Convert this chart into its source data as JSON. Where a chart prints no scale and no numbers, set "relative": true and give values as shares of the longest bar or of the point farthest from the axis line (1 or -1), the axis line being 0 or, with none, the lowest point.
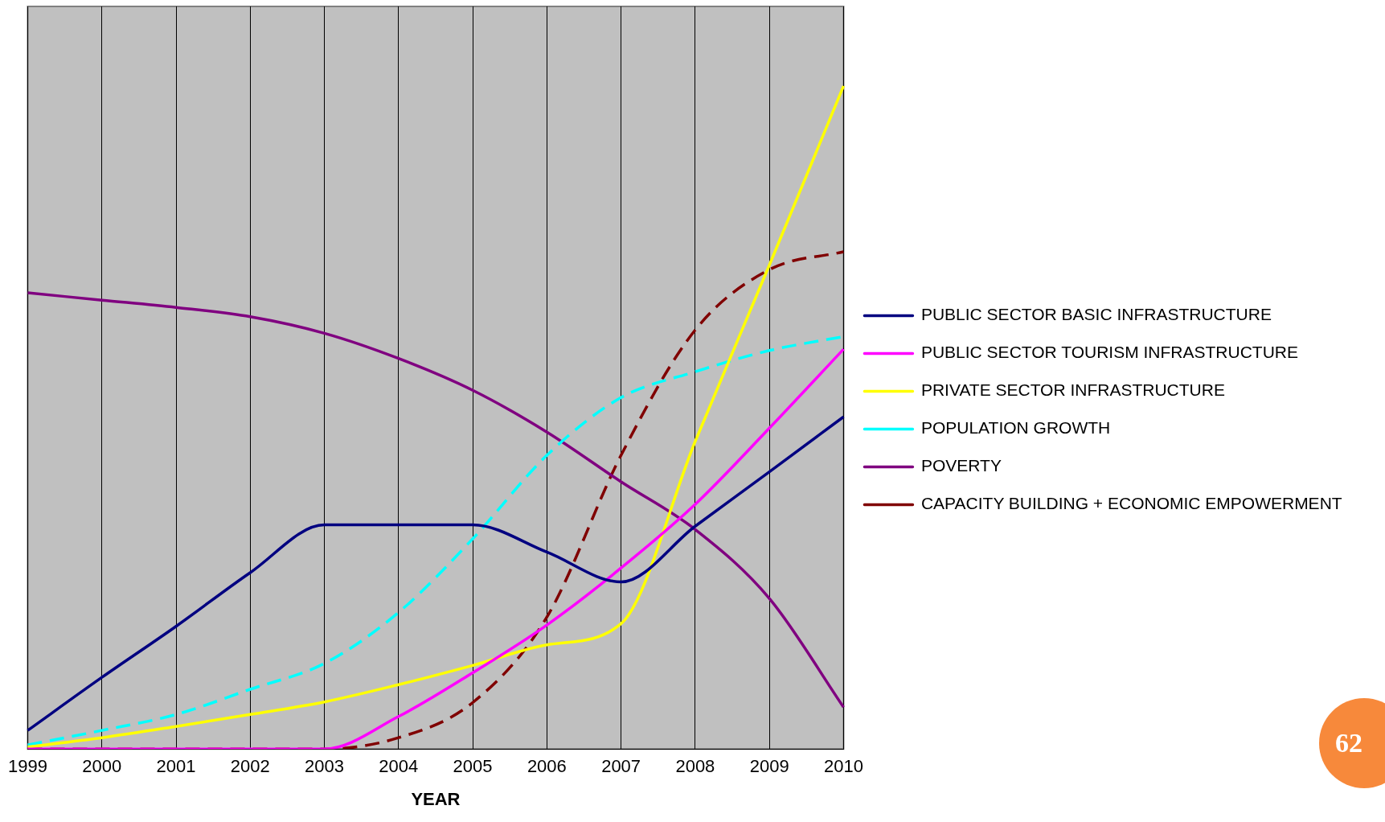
{
  "chart_data": {
    "type": "line",
    "relative": true,
    "xlabel": "YEAR",
    "categories": [
      "1999",
      "2000",
      "2001",
      "2002",
      "2003",
      "2004",
      "2005",
      "2006",
      "2007",
      "2008",
      "2009",
      "2010"
    ],
    "series": [
      {
        "name": "PUBLIC SECTOR BASIC INFRASTRUCTURE",
        "color": "#000080",
        "line_style": "solid",
        "values": [
          0.028,
          0.108,
          0.185,
          0.266,
          0.338,
          0.338,
          0.338,
          0.297,
          0.252,
          0.336,
          0.418,
          0.501
        ]
      },
      {
        "name": "PUBLIC SECTOR TOURISM INFRASTRUCTURE",
        "color": "#ff00ff",
        "line_style": "solid",
        "values": [
          0,
          0,
          0,
          0,
          0,
          0.049,
          0.115,
          0.187,
          0.273,
          0.369,
          0.484,
          0.603
        ]
      },
      {
        "name": "PRIVATE SECTOR INFRASTRUCTURE",
        "color": "#ffff00",
        "line_style": "solid",
        "values": [
          0.003,
          0.017,
          0.034,
          0.052,
          0.071,
          0.097,
          0.126,
          0.157,
          0.189,
          0.464,
          0.73,
          1
        ]
      },
      {
        "name": "POPULATION GROWTH",
        "color": "#00ffff",
        "line_style": "dashed",
        "values": [
          0.006,
          0.028,
          0.052,
          0.09,
          0.129,
          0.206,
          0.317,
          0.443,
          0.53,
          0.569,
          0.601,
          0.622
        ]
      },
      {
        "name": "POVERTY",
        "color": "#800080",
        "line_style": "solid",
        "values": [
          0.688,
          0.677,
          0.666,
          0.652,
          0.627,
          0.589,
          0.541,
          0.478,
          0.403,
          0.331,
          0.227,
          0.063
        ]
      },
      {
        "name": "CAPACITY BUILDING + ECONOMIC EMPOWERMENT",
        "color": "#800000",
        "line_style": "dashed",
        "values": [
          0,
          0,
          0,
          0,
          0,
          0.017,
          0.07,
          0.199,
          0.443,
          0.632,
          0.723,
          0.75
        ]
      }
    ],
    "grid": "x",
    "legend": "right",
    "marker": "none",
    "annotations": [
      "62"
    ]
  }
}
